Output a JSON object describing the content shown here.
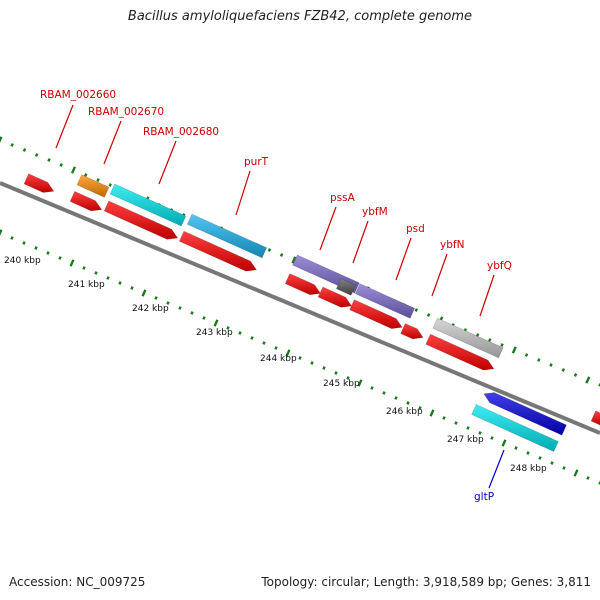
{
  "header": {
    "title": "Bacillus amyloliquefaciens FZB42, complete genome"
  },
  "footer": {
    "accession": "Accession: NC_009725",
    "summary": "Topology: circular; Length: 3,918,589 bp; Genes: 3,811"
  },
  "ticks": [
    "240 kbp",
    "241 kbp",
    "242 kbp",
    "243 kbp",
    "244 kbp",
    "245 kbp",
    "246 kbp",
    "247 kbp",
    "248 kbp"
  ],
  "gene_labels": [
    {
      "id": "RBAM_002660",
      "text": "RBAM_002660",
      "color": "#cc0000"
    },
    {
      "id": "RBAM_002670",
      "text": "RBAM_002670",
      "color": "#cc0000"
    },
    {
      "id": "RBAM_002680",
      "text": "RBAM_002680",
      "color": "#cc0000"
    },
    {
      "id": "purT",
      "text": "purT",
      "color": "#cc0000"
    },
    {
      "id": "pssA",
      "text": "pssA",
      "color": "#cc0000"
    },
    {
      "id": "ybfM",
      "text": "ybfM",
      "color": "#cc0000"
    },
    {
      "id": "psd",
      "text": "psd",
      "color": "#cc0000"
    },
    {
      "id": "ybfN",
      "text": "ybfN",
      "color": "#cc0000"
    },
    {
      "id": "ybfQ",
      "text": "ybfQ",
      "color": "#cc0000"
    },
    {
      "id": "gltP",
      "text": "gltP",
      "color": "#0000cc"
    }
  ],
  "colors": {
    "cds": "#ff0000",
    "orange": "#ff8c00",
    "cyan": "#00e5ee",
    "sky": "#1ab2ee",
    "purple": "#7b68cc",
    "gray": "#c8c8c8",
    "dark_gray": "#555555",
    "blue": "#0000dd",
    "backbone": "#777777",
    "tick": "#1a7a1a"
  }
}
